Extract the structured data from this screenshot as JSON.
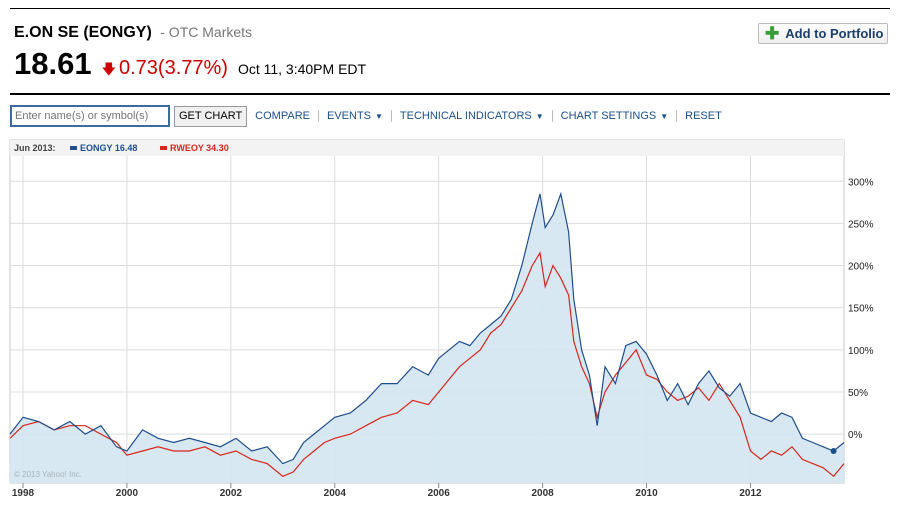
{
  "header": {
    "company": "E.ON SE (EONGY)",
    "exchange": "- OTC Markets",
    "price": "18.61",
    "change": "0.73",
    "change_pct": "(3.77%)",
    "time": "Oct 11, 3:40PM EDT",
    "add_portfolio": "Add to Portfolio"
  },
  "toolbar": {
    "symbol_placeholder": "Enter name(s) or symbol(s)",
    "get_chart": "GET CHART",
    "compare": "COMPARE",
    "events": "EVENTS",
    "technical": "TECHNICAL INDICATORS",
    "settings": "CHART SETTINGS",
    "reset": "RESET"
  },
  "legend": {
    "date": "Jun 2013:",
    "s1": "EONGY 16.48",
    "s2": "RWEOY 34.30"
  },
  "watermark": "© 2013 Yahoo! Inc.",
  "colors": {
    "eongy": "#1f4e8c",
    "rweoy": "#d9261c",
    "area": "#d3e5f1",
    "negative": "#cc0000"
  },
  "icons": {
    "add": "plus-icon",
    "change": "down-arrow-icon"
  },
  "chart_data": {
    "type": "line",
    "xlim": [
      1997.75,
      2013.8
    ],
    "ylim": [
      -58,
      330
    ],
    "y_ticks": [
      0,
      50,
      100,
      150,
      200,
      250,
      300
    ],
    "y_tick_labels": [
      "0%",
      "50%",
      "100%",
      "150%",
      "200%",
      "250%",
      "300%"
    ],
    "x_ticks": [
      1998,
      2000,
      2002,
      2004,
      2006,
      2008,
      2010,
      2012
    ],
    "x_tick_labels": [
      "1998",
      "2000",
      "2002",
      "2004",
      "2006",
      "2008",
      "2010",
      "2012"
    ],
    "series": [
      {
        "name": "EONGY",
        "x": [
          1997.75,
          1998.0,
          1998.3,
          1998.6,
          1998.9,
          1999.2,
          1999.5,
          1999.8,
          2000.0,
          2000.3,
          2000.6,
          2000.9,
          2001.2,
          2001.5,
          2001.8,
          2002.1,
          2002.4,
          2002.7,
          2003.0,
          2003.2,
          2003.4,
          2003.6,
          2003.8,
          2004.0,
          2004.3,
          2004.6,
          2004.9,
          2005.2,
          2005.5,
          2005.8,
          2006.0,
          2006.2,
          2006.4,
          2006.6,
          2006.8,
          2007.0,
          2007.2,
          2007.4,
          2007.6,
          2007.8,
          2007.95,
          2008.05,
          2008.2,
          2008.35,
          2008.5,
          2008.6,
          2008.75,
          2008.9,
          2009.05,
          2009.2,
          2009.4,
          2009.6,
          2009.8,
          2010.0,
          2010.2,
          2010.4,
          2010.6,
          2010.8,
          2011.0,
          2011.2,
          2011.4,
          2011.6,
          2011.8,
          2012.0,
          2012.2,
          2012.4,
          2012.6,
          2012.8,
          2013.0,
          2013.2,
          2013.4,
          2013.6,
          2013.8
        ],
        "y": [
          0,
          20,
          15,
          5,
          15,
          0,
          10,
          -15,
          -20,
          5,
          -5,
          -10,
          -5,
          -10,
          -15,
          -5,
          -20,
          -15,
          -35,
          -30,
          -10,
          0,
          10,
          20,
          25,
          40,
          60,
          60,
          80,
          70,
          90,
          100,
          110,
          105,
          120,
          130,
          140,
          160,
          200,
          250,
          285,
          245,
          260,
          285,
          240,
          160,
          100,
          70,
          10,
          80,
          60,
          105,
          110,
          95,
          70,
          40,
          60,
          35,
          60,
          75,
          55,
          45,
          60,
          25,
          20,
          15,
          25,
          20,
          -5,
          -10,
          -15,
          -20,
          -10
        ]
      },
      {
        "name": "RWEOY",
        "x": [
          1997.75,
          1998.0,
          1998.3,
          1998.6,
          1998.9,
          1999.2,
          1999.5,
          1999.8,
          2000.0,
          2000.3,
          2000.6,
          2000.9,
          2001.2,
          2001.5,
          2001.8,
          2002.1,
          2002.4,
          2002.7,
          2003.0,
          2003.2,
          2003.4,
          2003.6,
          2003.8,
          2004.0,
          2004.3,
          2004.6,
          2004.9,
          2005.2,
          2005.5,
          2005.8,
          2006.0,
          2006.2,
          2006.4,
          2006.6,
          2006.8,
          2007.0,
          2007.2,
          2007.4,
          2007.6,
          2007.8,
          2007.95,
          2008.05,
          2008.2,
          2008.35,
          2008.5,
          2008.6,
          2008.75,
          2008.9,
          2009.05,
          2009.2,
          2009.4,
          2009.6,
          2009.8,
          2010.0,
          2010.2,
          2010.4,
          2010.6,
          2010.8,
          2011.0,
          2011.2,
          2011.4,
          2011.6,
          2011.8,
          2012.0,
          2012.2,
          2012.4,
          2012.6,
          2012.8,
          2013.0,
          2013.2,
          2013.4,
          2013.6,
          2013.8
        ],
        "y": [
          -5,
          10,
          15,
          5,
          10,
          10,
          0,
          -10,
          -25,
          -20,
          -15,
          -20,
          -20,
          -15,
          -25,
          -20,
          -30,
          -35,
          -50,
          -45,
          -30,
          -20,
          -10,
          -5,
          0,
          10,
          20,
          25,
          40,
          35,
          50,
          65,
          80,
          90,
          100,
          120,
          130,
          150,
          170,
          200,
          215,
          175,
          200,
          185,
          165,
          110,
          80,
          60,
          20,
          50,
          70,
          85,
          100,
          70,
          65,
          50,
          40,
          45,
          55,
          40,
          60,
          40,
          20,
          -20,
          -30,
          -20,
          -25,
          -15,
          -30,
          -35,
          -40,
          -50,
          -35
        ]
      }
    ]
  }
}
